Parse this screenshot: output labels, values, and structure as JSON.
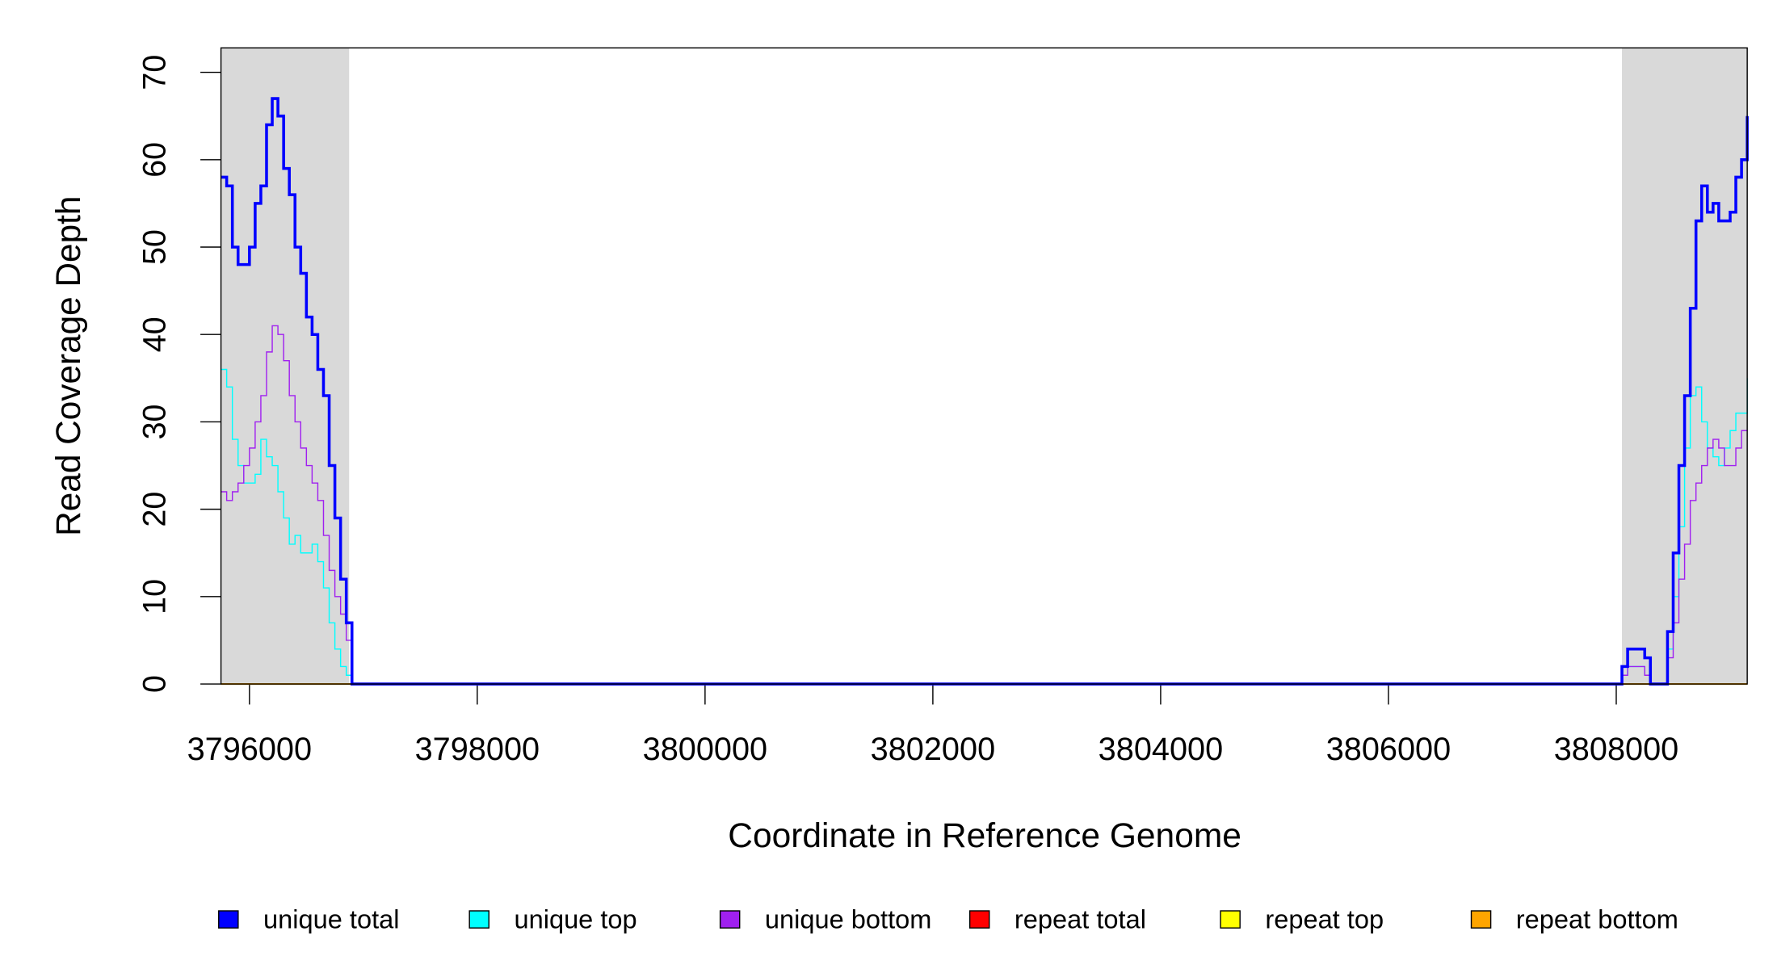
{
  "chart_data": {
    "type": "line",
    "step": true,
    "x_label": "Coordinate in Reference Genome",
    "y_label": "Read Coverage Depth",
    "xlim": [
      3795750,
      3809150
    ],
    "ylim": [
      0,
      72.8
    ],
    "xticks": [
      3796000,
      3798000,
      3800000,
      3802000,
      3804000,
      3806000,
      3808000
    ],
    "yticks": [
      0,
      10,
      20,
      30,
      40,
      50,
      60,
      70
    ],
    "shaded_regions": [
      [
        3795750,
        3796875
      ],
      [
        3808050,
        3809150
      ]
    ],
    "shade_color": "#d9d9d9",
    "x": [
      3795750,
      3795800,
      3795850,
      3795900,
      3795950,
      3796000,
      3796050,
      3796100,
      3796150,
      3796200,
      3796250,
      3796300,
      3796350,
      3796400,
      3796450,
      3796500,
      3796550,
      3796600,
      3796650,
      3796700,
      3796750,
      3796800,
      3796850,
      3796900,
      3808000,
      3808050,
      3808100,
      3808150,
      3808200,
      3808250,
      3808300,
      3808350,
      3808400,
      3808450,
      3808500,
      3808550,
      3808600,
      3808650,
      3808700,
      3808750,
      3808800,
      3808850,
      3808900,
      3808950,
      3809000,
      3809050,
      3809100,
      3809150
    ],
    "series": [
      {
        "name": "repeat total",
        "color": "#ff0000",
        "width": 1,
        "values": [
          0,
          0,
          0,
          0,
          0,
          0,
          0,
          0,
          0,
          0,
          0,
          0,
          0,
          0,
          0,
          0,
          0,
          0,
          0,
          0,
          0,
          0,
          0,
          0,
          0,
          0,
          0,
          0,
          0,
          0,
          0,
          0,
          0,
          0,
          0,
          0,
          0,
          0,
          0,
          0,
          0,
          0,
          0,
          0,
          0,
          0,
          0,
          0
        ]
      },
      {
        "name": "repeat top",
        "color": "#ffff00",
        "width": 1,
        "values": [
          0,
          0,
          0,
          0,
          0,
          0,
          0,
          0,
          0,
          0,
          0,
          0,
          0,
          0,
          0,
          0,
          0,
          0,
          0,
          0,
          0,
          0,
          0,
          0,
          0,
          0,
          0,
          0,
          0,
          0,
          0,
          0,
          0,
          0,
          0,
          0,
          0,
          0,
          0,
          0,
          0,
          0,
          0,
          0,
          0,
          0,
          0,
          0
        ]
      },
      {
        "name": "repeat bottom",
        "color": "#ffa500",
        "width": 1.5,
        "values": [
          0,
          0,
          0,
          0,
          0,
          0,
          0,
          0,
          0,
          0,
          0,
          0,
          0,
          0,
          0,
          0,
          0,
          0,
          0,
          0,
          0,
          0,
          0,
          0,
          0,
          0,
          0,
          0,
          0,
          0,
          0,
          0,
          0,
          0,
          0,
          0,
          0,
          0,
          0,
          0,
          0,
          0,
          0,
          0,
          0,
          0,
          0,
          0
        ]
      },
      {
        "name": "unique top",
        "color": "#00ffff",
        "width": 1,
        "values": [
          36,
          34,
          28,
          25,
          23,
          23,
          24,
          28,
          26,
          25,
          22,
          19,
          16,
          17,
          15,
          15,
          16,
          14,
          11,
          7,
          4,
          2,
          1,
          0,
          0,
          1,
          2,
          2,
          2,
          1,
          0,
          0,
          0,
          4,
          10,
          18,
          27,
          33,
          34,
          30,
          27,
          26,
          25,
          27,
          29,
          31,
          31,
          35
        ]
      },
      {
        "name": "unique bottom",
        "color": "#a020f0",
        "width": 1,
        "values": [
          22,
          21,
          22,
          23,
          25,
          27,
          30,
          33,
          38,
          41,
          40,
          37,
          33,
          30,
          27,
          25,
          23,
          21,
          17,
          13,
          10,
          8,
          5,
          0,
          0,
          1,
          2,
          2,
          2,
          1,
          0,
          0,
          0,
          3,
          7,
          12,
          16,
          21,
          23,
          25,
          27,
          28,
          27,
          25,
          25,
          27,
          29,
          29
        ]
      },
      {
        "name": "unique total",
        "color": "#0000ff",
        "width": 2.5,
        "values": [
          58,
          57,
          50,
          48,
          48,
          50,
          55,
          57,
          64,
          67,
          65,
          59,
          56,
          50,
          47,
          42,
          40,
          36,
          33,
          25,
          19,
          12,
          7,
          0,
          0,
          2,
          4,
          4,
          4,
          3,
          0,
          0,
          0,
          6,
          15,
          25,
          33,
          43,
          53,
          57,
          54,
          55,
          53,
          53,
          54,
          58,
          60,
          65
        ]
      }
    ],
    "legend_order": [
      5,
      3,
      4,
      0,
      1,
      2
    ]
  }
}
